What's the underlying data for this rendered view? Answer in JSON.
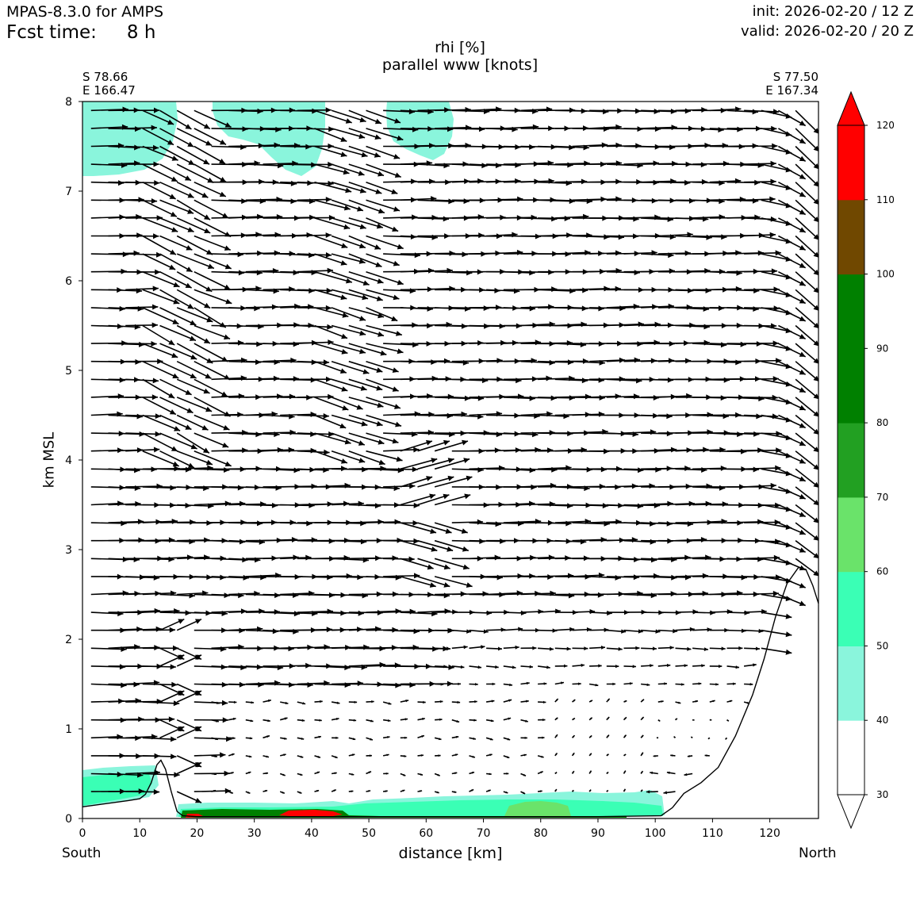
{
  "header": {
    "model": "MPAS-8.3.0 for AMPS",
    "fcst_label": "Fcst time:",
    "fcst_value": "8 h",
    "init": "init: 2026-02-20 / 12 Z",
    "valid": "valid: 2026-02-20 / 20 Z"
  },
  "endpoints": {
    "south_lat": "S 78.66",
    "south_lon": "E 166.47",
    "north_lat": "S 77.50",
    "north_lon": "E 167.34",
    "south_label": "South",
    "north_label": "North"
  },
  "chart_data": {
    "type": "heatmap",
    "title": "rhi [%]",
    "subtitle": "parallel www [knots]",
    "xlabel": "distance [km]",
    "ylabel": "km MSL",
    "xlim": [
      0,
      128.5
    ],
    "ylim": [
      0,
      8
    ],
    "x_ticks": [
      "0",
      "10",
      "20",
      "30",
      "40",
      "50",
      "60",
      "70",
      "80",
      "90",
      "100",
      "110",
      "120"
    ],
    "y_ticks": [
      "0",
      "1",
      "2",
      "3",
      "4",
      "5",
      "6",
      "7",
      "8"
    ],
    "colorbar": {
      "levels": [
        30,
        40,
        50,
        60,
        70,
        80,
        90,
        100,
        110,
        120
      ],
      "tick_labels": [
        "30",
        "40",
        "50",
        "60",
        "70",
        "80",
        "90",
        "100",
        "110",
        "120"
      ],
      "colors": [
        "#ffffff",
        "#8af5dc",
        "#3affb5",
        "#6ae36a",
        "#22a022",
        "#008000",
        "#008000",
        "#704800",
        "#ff0000"
      ],
      "extend": "both"
    },
    "terrain_profile": [
      [
        0,
        0.13
      ],
      [
        8,
        0.2
      ],
      [
        10,
        0.22
      ],
      [
        11,
        0.27
      ],
      [
        12,
        0.4
      ],
      [
        13,
        0.6
      ],
      [
        13.7,
        0.65
      ],
      [
        14.5,
        0.55
      ],
      [
        15.5,
        0.3
      ],
      [
        16.5,
        0.08
      ],
      [
        17.5,
        0.03
      ],
      [
        20,
        0.02
      ],
      [
        30,
        0.02
      ],
      [
        40,
        0.02
      ],
      [
        50,
        0.02
      ],
      [
        60,
        0.02
      ],
      [
        70,
        0.02
      ],
      [
        80,
        0.02
      ],
      [
        90,
        0.02
      ],
      [
        101,
        0.03
      ],
      [
        103,
        0.12
      ],
      [
        105,
        0.28
      ],
      [
        108,
        0.4
      ],
      [
        111,
        0.57
      ],
      [
        114,
        0.92
      ],
      [
        117,
        1.38
      ],
      [
        119,
        1.78
      ],
      [
        121,
        2.25
      ],
      [
        123,
        2.62
      ],
      [
        125,
        2.8
      ],
      [
        126.3,
        2.78
      ],
      [
        127.5,
        2.6
      ],
      [
        128.5,
        2.4
      ]
    ],
    "rhi_regions": [
      {
        "name": "upper-left-cloud",
        "rhi_class": "40-50"
      },
      {
        "name": "upper-mid-cloud",
        "rhi_class": "40-50"
      },
      {
        "name": "upper-right-cloud",
        "rhi_class": "40-50"
      },
      {
        "name": "southern-low-layer",
        "rhi_class": "50-60"
      },
      {
        "name": "valley-boundary-layer",
        "rhi_class": "40-60"
      },
      {
        "name": "valley-saturated-core",
        "rhi_class": "80-120"
      }
    ],
    "wind_vectors": {
      "levels_km_msl": [
        0.3,
        0.5,
        0.7,
        0.9,
        1.1,
        1.3,
        1.5,
        1.7,
        1.9,
        2.1,
        2.3,
        2.5,
        2.7,
        2.9,
        3.1,
        3.3,
        3.5,
        3.7,
        3.9,
        4.1,
        4.3,
        4.5,
        4.7,
        4.9,
        5.1,
        5.3,
        5.5,
        5.7,
        5.9,
        6.1,
        6.3,
        6.5,
        6.7,
        6.9,
        7.1,
        7.3,
        7.5,
        7.7,
        7.9
      ],
      "column_spacing_km": 3.0,
      "regime": "strong southerly (along-section) flow aloft; weak winds in valley below 1.5 km; steep descent over northern ridge"
    }
  }
}
